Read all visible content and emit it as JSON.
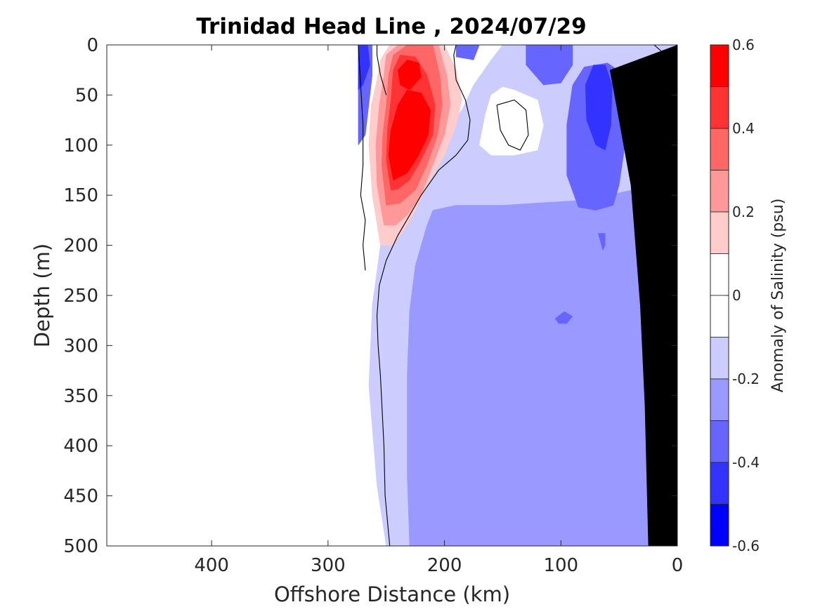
{
  "chart_data": {
    "type": "contour",
    "title": "Trinidad Head Line , 2024/07/29",
    "xlabel": "Offshore Distance (km)",
    "ylabel": "Depth (m)",
    "x_axis": {
      "range": [
        490,
        0
      ],
      "reversed": true,
      "ticks": [
        400,
        300,
        200,
        100,
        0
      ]
    },
    "y_axis": {
      "range": [
        0,
        500
      ],
      "reversed": true,
      "ticks": [
        0,
        50,
        100,
        150,
        200,
        250,
        300,
        350,
        400,
        450,
        500
      ]
    },
    "colorbar": {
      "label": "Anomaly of Salinity (psu)",
      "range": [
        -0.6,
        0.6
      ],
      "ticks": [
        0.6,
        0.4,
        0.2,
        0,
        -0.2,
        -0.4,
        -0.6
      ],
      "levels": [
        {
          "from": 0.5,
          "to": 0.6,
          "color": "#ff0000"
        },
        {
          "from": 0.4,
          "to": 0.5,
          "color": "#ff3333"
        },
        {
          "from": 0.3,
          "to": 0.4,
          "color": "#ff6666"
        },
        {
          "from": 0.2,
          "to": 0.3,
          "color": "#ff9999"
        },
        {
          "from": 0.1,
          "to": 0.2,
          "color": "#ffcccc"
        },
        {
          "from": 0.0,
          "to": 0.1,
          "color": "#ffffff"
        },
        {
          "from": -0.1,
          "to": 0.0,
          "color": "#ffffff"
        },
        {
          "from": -0.2,
          "to": -0.1,
          "color": "#ccccff"
        },
        {
          "from": -0.3,
          "to": -0.2,
          "color": "#9999ff"
        },
        {
          "from": -0.4,
          "to": -0.3,
          "color": "#6666ff"
        },
        {
          "from": -0.5,
          "to": -0.4,
          "color": "#3333ff"
        },
        {
          "from": -0.6,
          "to": -0.5,
          "color": "#0000ff"
        }
      ]
    },
    "regions": [
      {
        "name": "region-weak-negative",
        "color": "#ccccff",
        "points": [
          [
            250,
            500
          ],
          [
            258,
            440
          ],
          [
            265,
            340
          ],
          [
            262,
            260
          ],
          [
            255,
            200
          ],
          [
            250,
            170
          ],
          [
            240,
            140
          ],
          [
            230,
            115
          ],
          [
            215,
            100
          ],
          [
            200,
            85
          ],
          [
            185,
            65
          ],
          [
            175,
            40
          ],
          [
            160,
            15
          ],
          [
            150,
            0
          ],
          [
            0,
            0
          ],
          [
            0,
            500
          ]
        ]
      },
      {
        "name": "region-moderate-negative",
        "color": "#9999ff",
        "points": [
          [
            230,
            500
          ],
          [
            232,
            430
          ],
          [
            232,
            330
          ],
          [
            230,
            265
          ],
          [
            225,
            220
          ],
          [
            215,
            180
          ],
          [
            210,
            165
          ],
          [
            190,
            160
          ],
          [
            150,
            160
          ],
          [
            110,
            157
          ],
          [
            80,
            155
          ],
          [
            60,
            150
          ],
          [
            40,
            145
          ],
          [
            25,
            140
          ],
          [
            15,
            120
          ],
          [
            8,
            100
          ],
          [
            0,
            95
          ],
          [
            0,
            500
          ]
        ]
      },
      {
        "name": "region-strong-negative-offshore-east",
        "color": "#6666ff",
        "points": [
          [
            95,
            130
          ],
          [
            95,
            80
          ],
          [
            90,
            40
          ],
          [
            80,
            22
          ],
          [
            60,
            18
          ],
          [
            45,
            30
          ],
          [
            40,
            60
          ],
          [
            45,
            100
          ],
          [
            50,
            140
          ],
          [
            55,
            160
          ],
          [
            70,
            165
          ],
          [
            85,
            162
          ]
        ]
      },
      {
        "name": "region-strong-negative-surface-200km",
        "color": "#6666ff",
        "points": [
          [
            190,
            0
          ],
          [
            130,
            0
          ],
          [
            130,
            20
          ],
          [
            115,
            40
          ],
          [
            100,
            38
          ],
          [
            90,
            20
          ],
          [
            90,
            0
          ],
          [
            170,
            0
          ],
          [
            175,
            15
          ],
          [
            190,
            12
          ]
        ]
      },
      {
        "name": "region-strong-negative-spot-270m",
        "color": "#6666ff",
        "points": [
          [
            105,
            273
          ],
          [
            97,
            266
          ],
          [
            90,
            271
          ],
          [
            95,
            278
          ],
          [
            102,
            278
          ]
        ]
      },
      {
        "name": "region-strong-negative-spot-200m",
        "color": "#6666ff",
        "points": [
          [
            68,
            188
          ],
          [
            62,
            188
          ],
          [
            62,
            200
          ],
          [
            64,
            205
          ]
        ]
      },
      {
        "name": "region-very-strong-negative-core",
        "color": "#3333ff",
        "points": [
          [
            78,
            75
          ],
          [
            79,
            40
          ],
          [
            72,
            20
          ],
          [
            62,
            20
          ],
          [
            56,
            40
          ],
          [
            57,
            80
          ],
          [
            62,
            105
          ],
          [
            70,
            100
          ]
        ]
      },
      {
        "name": "region-negative-nearshore-edge",
        "color": "#6666ff",
        "points": [
          [
            274,
            0
          ],
          [
            262,
            0
          ],
          [
            262,
            30
          ],
          [
            265,
            60
          ],
          [
            268,
            90
          ],
          [
            274,
            100
          ]
        ]
      },
      {
        "name": "region-very-strong-negative-nearshore-edge",
        "color": "#3333ff",
        "points": [
          [
            274,
            0
          ],
          [
            266,
            0
          ],
          [
            264,
            20
          ],
          [
            270,
            40
          ],
          [
            274,
            45
          ]
        ]
      },
      {
        "name": "region-white-lens",
        "color": "#ffffff",
        "points": [
          [
            170,
            100
          ],
          [
            165,
            70
          ],
          [
            160,
            50
          ],
          [
            150,
            42
          ],
          [
            140,
            45
          ],
          [
            120,
            55
          ],
          [
            115,
            80
          ],
          [
            120,
            105
          ],
          [
            140,
            110
          ],
          [
            160,
            110
          ]
        ]
      },
      {
        "name": "region-positive-0.1",
        "color": "#ffcccc",
        "points": [
          [
            255,
            200
          ],
          [
            262,
            150
          ],
          [
            265,
            100
          ],
          [
            263,
            60
          ],
          [
            258,
            35
          ],
          [
            255,
            15
          ],
          [
            247,
            0
          ],
          [
            200,
            0
          ],
          [
            190,
            25
          ],
          [
            185,
            55
          ],
          [
            190,
            80
          ],
          [
            200,
            110
          ],
          [
            215,
            140
          ],
          [
            225,
            165
          ],
          [
            235,
            185
          ],
          [
            245,
            200
          ]
        ]
      },
      {
        "name": "region-positive-0.2",
        "color": "#ff9999",
        "points": [
          [
            252,
            180
          ],
          [
            258,
            140
          ],
          [
            259,
            100
          ],
          [
            256,
            60
          ],
          [
            252,
            30
          ],
          [
            250,
            10
          ],
          [
            240,
            0
          ],
          [
            205,
            0
          ],
          [
            198,
            30
          ],
          [
            195,
            60
          ],
          [
            200,
            90
          ],
          [
            210,
            120
          ],
          [
            220,
            150
          ],
          [
            232,
            170
          ],
          [
            242,
            180
          ]
        ]
      },
      {
        "name": "region-positive-0.3",
        "color": "#ff6666",
        "points": [
          [
            250,
            160
          ],
          [
            254,
            120
          ],
          [
            253,
            90
          ],
          [
            250,
            60
          ],
          [
            248,
            30
          ],
          [
            244,
            10
          ],
          [
            232,
            0
          ],
          [
            210,
            0
          ],
          [
            204,
            30
          ],
          [
            202,
            60
          ],
          [
            206,
            90
          ],
          [
            215,
            120
          ],
          [
            225,
            145
          ],
          [
            238,
            158
          ]
        ]
      },
      {
        "name": "region-positive-0.4",
        "color": "#ff3333",
        "points": [
          [
            246,
            145
          ],
          [
            250,
            115
          ],
          [
            249,
            85
          ],
          [
            246,
            55
          ],
          [
            244,
            25
          ],
          [
            238,
            10
          ],
          [
            225,
            12
          ],
          [
            215,
            30
          ],
          [
            208,
            60
          ],
          [
            210,
            90
          ],
          [
            220,
            115
          ],
          [
            230,
            135
          ],
          [
            240,
            144
          ]
        ]
      },
      {
        "name": "region-positive-0.5",
        "color": "#ff0000",
        "points": [
          [
            244,
            135
          ],
          [
            248,
            110
          ],
          [
            246,
            85
          ],
          [
            240,
            60
          ],
          [
            232,
            45
          ],
          [
            220,
            48
          ],
          [
            212,
            65
          ],
          [
            214,
            90
          ],
          [
            222,
            110
          ],
          [
            232,
            128
          ]
        ]
      },
      {
        "name": "region-positive-0.5-surface",
        "color": "#ff0000",
        "points": [
          [
            238,
            40
          ],
          [
            240,
            25
          ],
          [
            232,
            15
          ],
          [
            222,
            18
          ],
          [
            220,
            32
          ],
          [
            230,
            45
          ]
        ]
      }
    ],
    "zero_contours": [
      {
        "name": "zero-contour-west",
        "points": [
          [
            268,
            225
          ],
          [
            270,
            200
          ],
          [
            268,
            175
          ],
          [
            272,
            150
          ],
          [
            270,
            120
          ],
          [
            270,
            80
          ],
          [
            272,
            40
          ],
          [
            274,
            0
          ]
        ]
      },
      {
        "name": "zero-contour-main",
        "points": [
          [
            247,
            500
          ],
          [
            251,
            450
          ],
          [
            252,
            400
          ],
          [
            255,
            330
          ],
          [
            257,
            300
          ],
          [
            258,
            270
          ],
          [
            256,
            240
          ],
          [
            250,
            215
          ],
          [
            240,
            190
          ],
          [
            230,
            170
          ],
          [
            220,
            150
          ],
          [
            205,
            125
          ],
          [
            190,
            110
          ],
          [
            180,
            95
          ],
          [
            178,
            75
          ],
          [
            182,
            55
          ],
          [
            190,
            35
          ],
          [
            192,
            10
          ],
          [
            190,
            0
          ]
        ]
      },
      {
        "name": "zero-contour-inner",
        "points": [
          [
            250,
            50
          ],
          [
            255,
            30
          ],
          [
            258,
            10
          ],
          [
            258,
            0
          ]
        ]
      },
      {
        "name": "zero-contour-lens",
        "points": [
          [
            155,
            60
          ],
          [
            140,
            55
          ],
          [
            130,
            65
          ],
          [
            128,
            90
          ],
          [
            135,
            105
          ],
          [
            145,
            100
          ],
          [
            152,
            85
          ],
          [
            155,
            60
          ]
        ]
      },
      {
        "name": "zero-contour-corner",
        "points": [
          [
            20,
            0
          ],
          [
            12,
            8
          ]
        ]
      }
    ],
    "shelf_mask": {
      "color": "#000000",
      "points": [
        [
          0,
          0
        ],
        [
          0,
          500
        ],
        [
          25,
          500
        ],
        [
          28,
          360
        ],
        [
          32,
          260
        ],
        [
          40,
          140
        ],
        [
          58,
          25
        ]
      ]
    }
  }
}
